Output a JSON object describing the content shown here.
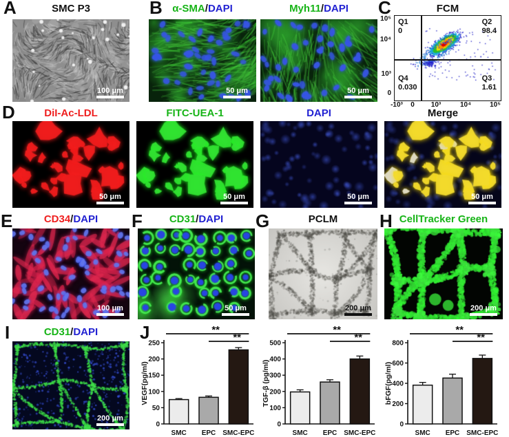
{
  "colors": {
    "stain_green": "#17b417",
    "stain_blue": "#2222d2",
    "stain_red": "#ef1f1f",
    "text_black": "#111111",
    "bar_fills": [
      "#ececec",
      "#a9a9a9",
      "#241812"
    ]
  },
  "panels": {
    "a": {
      "label": "A",
      "title": "SMC P3",
      "scale_bar": "100 μm"
    },
    "b": {
      "label": "B",
      "image1": {
        "stain": "α-SMA",
        "sep": "/",
        "counterstain": "DAPI",
        "scale_bar": "50 μm"
      },
      "image2": {
        "stain": "Myh11",
        "sep": "/",
        "counterstain": "DAPI",
        "scale_bar": "50 μm"
      }
    },
    "c": {
      "label": "C",
      "title": "FCM",
      "quadrants": {
        "q1": {
          "name": "Q1",
          "value": "0"
        },
        "q2": {
          "name": "Q2",
          "value": "98.4"
        },
        "q3": {
          "name": "Q3",
          "value": "1.61"
        },
        "q4": {
          "name": "Q4",
          "value": "0.030"
        }
      },
      "y_ticks": [
        "10⁵",
        "10⁴",
        "10³",
        "0"
      ],
      "x_ticks": [
        "-10³",
        "0",
        "10³",
        "10⁴",
        "10⁵"
      ]
    },
    "d": {
      "label": "D",
      "images": [
        {
          "title": "DiI-Ac-LDL",
          "scale_bar": "50 μm"
        },
        {
          "title": "FITC-UEA-1",
          "scale_bar": "50 μm"
        },
        {
          "title": "DAPI",
          "scale_bar": "50 μm"
        },
        {
          "title": "Merge",
          "scale_bar": "50 μm"
        }
      ]
    },
    "e": {
      "label": "E",
      "stain": "CD34",
      "sep": "/",
      "counterstain": "DAPI",
      "scale_bar": "100 μm"
    },
    "f": {
      "label": "F",
      "stain": "CD31",
      "sep": "/",
      "counterstain": "DAPI",
      "scale_bar": "50 μm"
    },
    "g": {
      "label": "G",
      "title": "PCLM",
      "scale_bar": "200 μm"
    },
    "h": {
      "label": "H",
      "title": "CellTracker Green",
      "scale_bar": "200 μm"
    },
    "i": {
      "label": "I",
      "stain": "CD31",
      "sep": "/",
      "counterstain": "DAPI",
      "scale_bar": "200 μm"
    },
    "j": {
      "label": "J"
    }
  },
  "chart_data": [
    {
      "type": "bar",
      "ylabel": "VEGF(pg/ml)",
      "categories": [
        "SMC",
        "EPC",
        "SMC-EPC"
      ],
      "values": [
        75,
        82,
        228
      ],
      "errors": [
        3,
        4,
        7
      ],
      "ylim": [
        0,
        250
      ],
      "yticks": [
        0,
        50,
        100,
        150,
        200,
        250
      ],
      "significance": [
        {
          "from": 0,
          "to": 2,
          "label": "**"
        },
        {
          "from": 1,
          "to": 2,
          "label": "**"
        }
      ]
    },
    {
      "type": "bar",
      "ylabel": "TGF-β (pg/ml)",
      "categories": [
        "SMC",
        "EPC",
        "SMC-EPC"
      ],
      "values": [
        197,
        258,
        400
      ],
      "errors": [
        13,
        14,
        18
      ],
      "ylim": [
        0,
        500
      ],
      "yticks": [
        0,
        100,
        200,
        300,
        400,
        500
      ],
      "significance": [
        {
          "from": 0,
          "to": 2,
          "label": "**"
        },
        {
          "from": 1,
          "to": 2,
          "label": "**"
        }
      ]
    },
    {
      "type": "bar",
      "ylabel": "bFGF(pg/ml)",
      "categories": [
        "SMC",
        "EPC",
        "SMC-EPC"
      ],
      "values": [
        382,
        452,
        645
      ],
      "errors": [
        27,
        38,
        33
      ],
      "ylim": [
        0,
        800
      ],
      "yticks": [
        0,
        200,
        400,
        600,
        800
      ],
      "significance": [
        {
          "from": 0,
          "to": 2,
          "label": "**"
        },
        {
          "from": 1,
          "to": 2,
          "label": "**"
        }
      ]
    }
  ]
}
